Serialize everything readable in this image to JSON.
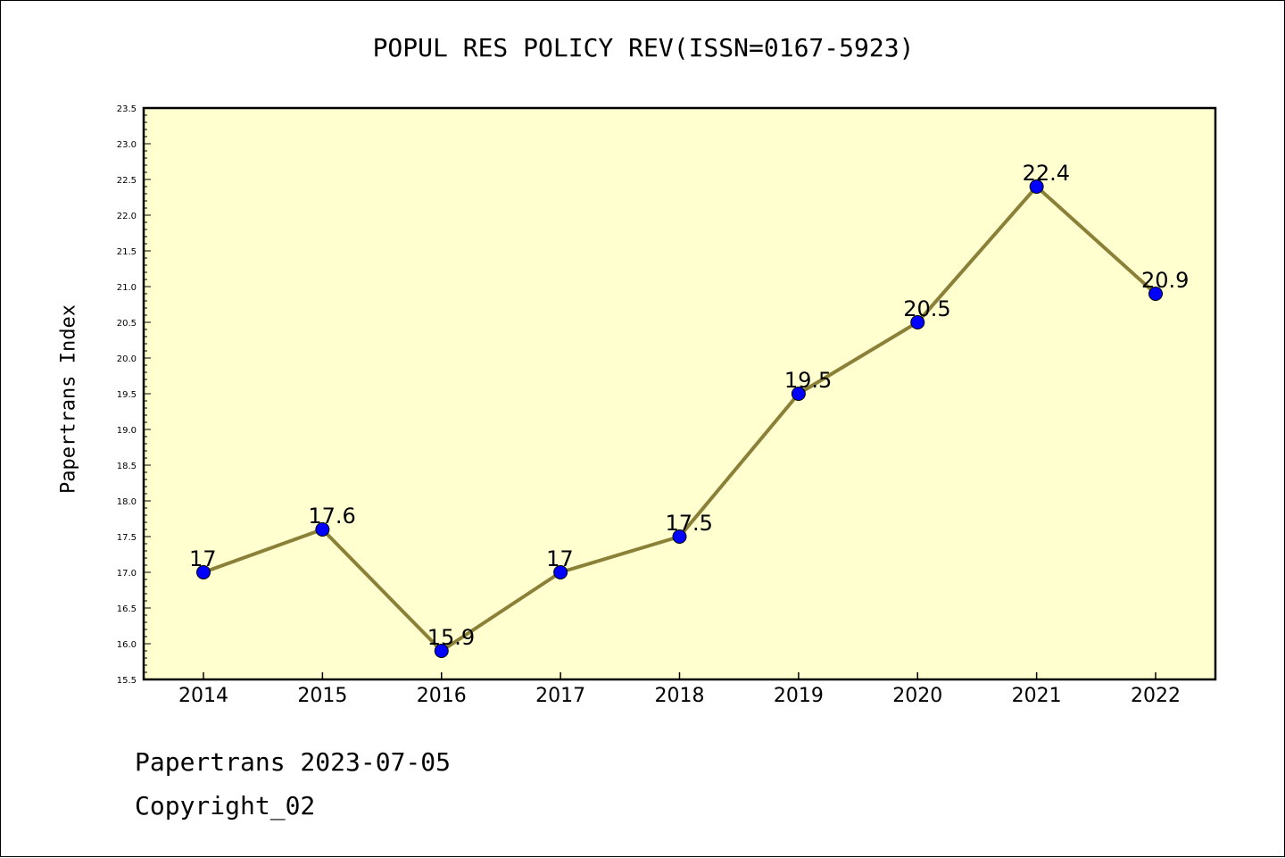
{
  "header": {
    "title": "POPUL RES POLICY REV(ISSN=0167-5923)"
  },
  "footer": {
    "date_line": "Papertrans 2023-07-05",
    "copyright_line": "Copyright_02"
  },
  "colors": {
    "plot_background": "#ffffd0",
    "line": "#8b8038",
    "marker": "#0000ff"
  },
  "chart_data": {
    "type": "line",
    "title": "POPUL RES POLICY REV(ISSN=0167-5923)",
    "xlabel": "",
    "ylabel": "Papertrans Index",
    "categories": [
      "2014",
      "2015",
      "2016",
      "2017",
      "2018",
      "2019",
      "2020",
      "2021",
      "2022"
    ],
    "series": [
      {
        "values": [
          17,
          17.6,
          15.9,
          17,
          17.5,
          19.5,
          20.5,
          22.4,
          20.9
        ]
      }
    ],
    "data_labels": [
      "17",
      "17.6",
      "15.9",
      "17",
      "17.5",
      "19.5",
      "20.5",
      "22.4",
      "20.9"
    ],
    "ylim": [
      15.5,
      23.5
    ],
    "yticks": [
      "15.5",
      "16.0",
      "16.5",
      "17.0",
      "17.5",
      "18.0",
      "18.5",
      "19.0",
      "19.5",
      "20.0",
      "20.5",
      "21.0",
      "21.5",
      "22.0",
      "22.5",
      "23.0",
      "23.5"
    ],
    "grid": false,
    "legend": "none"
  }
}
